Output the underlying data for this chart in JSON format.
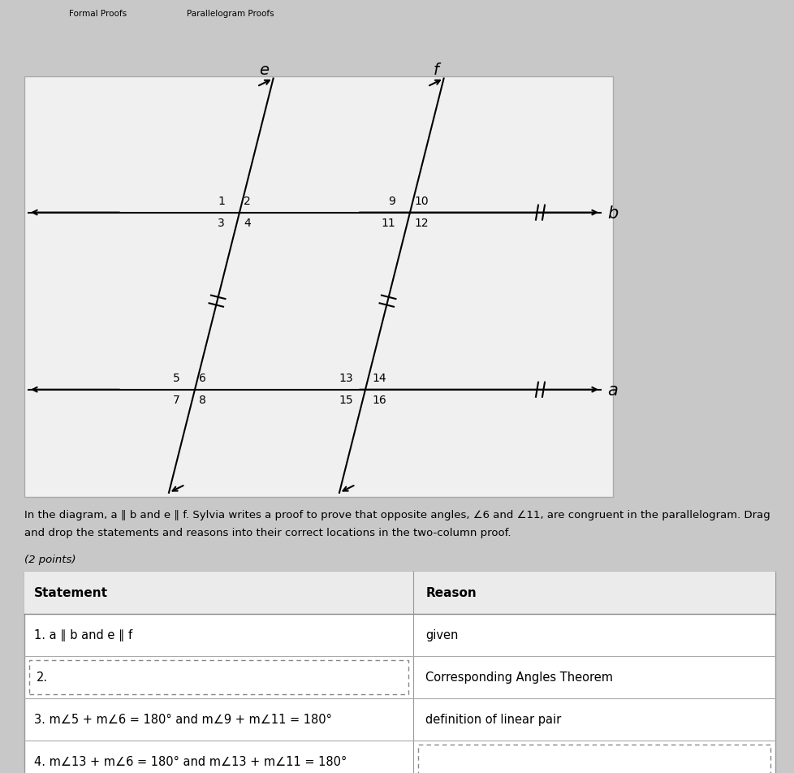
{
  "title_tabs": [
    "Formal Proofs",
    "Parallelogram Proofs"
  ],
  "tab_bar_color": "#1a9bac",
  "page_bg": "#c8c8c8",
  "diagram_bg": "#f2f2f2",
  "label_e": "e",
  "label_f": "f",
  "label_a": "a",
  "label_b": "b",
  "desc_line1": "In the diagram, a ∥ b and e ∥ f. Sylvia writes a proof to prove that opposite angles, ∠6 and ∠11, are congruent in the parallelogram. Drag",
  "desc_line2": "and drop the statements and reasons into their correct locations in the two-column proof.",
  "points_note": "(2 points)",
  "proof_rows": [
    {
      "statement": "1. a ∥ b and e ∥ f",
      "reason": "given",
      "stmt_dashed": false,
      "rsn_dashed": false
    },
    {
      "statement": "2.",
      "reason": "Corresponding Angles Theorem",
      "stmt_dashed": true,
      "rsn_dashed": false
    },
    {
      "statement": "3. m∠5 + m∠6 = 180° and m∠9 + m∠11 = 180°",
      "reason": "definition of linear pair",
      "stmt_dashed": false,
      "rsn_dashed": false
    },
    {
      "statement": "4. m∠13 + m∠6 = 180° and m∠13 + m∠11 = 180°",
      "reason": "",
      "stmt_dashed": false,
      "rsn_dashed": true
    }
  ],
  "header_statement": "Statement",
  "header_reason": "Reason"
}
